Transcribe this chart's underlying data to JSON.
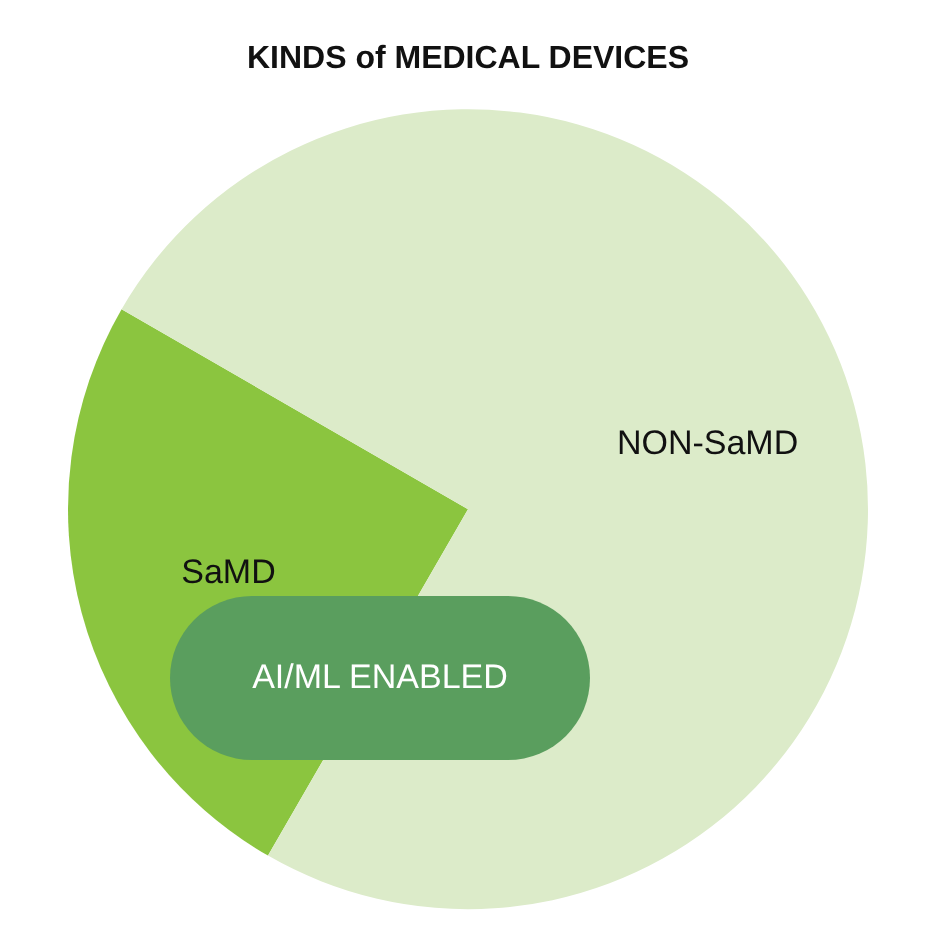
{
  "chart_data": {
    "type": "pie",
    "title": "KINDS of MEDICAL DEVICES",
    "categories": [
      "SaMD",
      "NON-SaMD"
    ],
    "values": [
      25,
      75
    ],
    "colors": [
      "#8bc53f",
      "#dcebc9"
    ],
    "legend": false,
    "annotations": [
      "AI/ML ENABLED"
    ]
  }
}
